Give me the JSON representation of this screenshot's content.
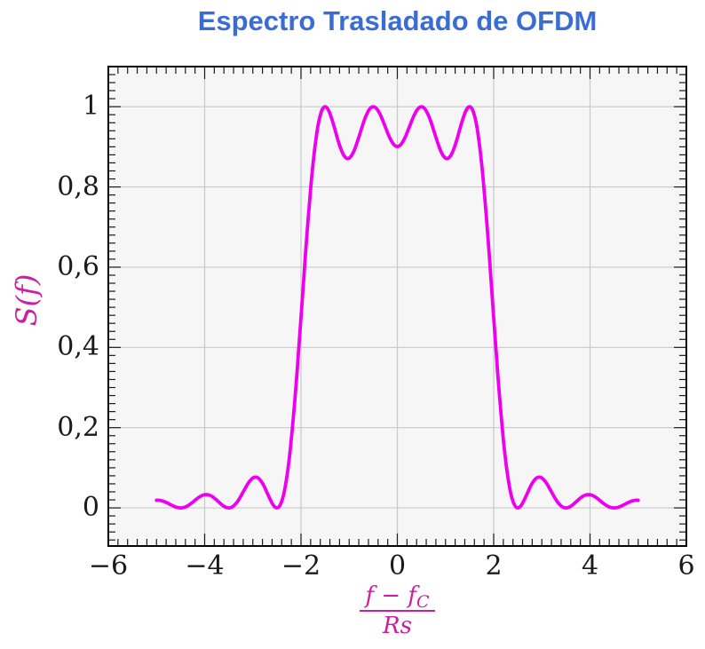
{
  "chart": {
    "title": "Espectro Trasladado de OFDM",
    "ylabel": "S(f)",
    "xlabel_parts": {
      "numerator_base": "f − f",
      "numerator_sub": "C",
      "denominator": "Rs"
    },
    "x_tick_labels": [
      "−6",
      "−4",
      "−2",
      "0",
      "2",
      "4",
      "6"
    ],
    "y_tick_labels": [
      "0",
      "0,2",
      "0,4",
      "0,6",
      "0,8",
      "1"
    ],
    "colors": {
      "title": "#3b6cd6",
      "axis_labels": "#cb1fa0",
      "curve": "#ee00ee",
      "grid": "#c9c9c9",
      "frame": "#000000",
      "ticks": "#1a1a1a",
      "tick_text": "#1a1a1a",
      "plot_background": "#f6f6f7",
      "page_background": "#ffffff"
    }
  },
  "chart_data": {
    "type": "line",
    "title": "Espectro Trasladado de OFDM",
    "xlabel": "(f − f_C) / Rs",
    "ylabel": "S(f)",
    "xlim": [
      -6,
      6
    ],
    "ylim": [
      -0.095,
      1.1
    ],
    "x_major_ticks": [
      -6,
      -4,
      -2,
      0,
      2,
      4,
      6
    ],
    "y_major_ticks": [
      0,
      0.2,
      0.4,
      0.6,
      0.8,
      1
    ],
    "x_minor_step": 0.2,
    "y_minor_step": 0.02,
    "grid": "major",
    "legend": "none",
    "series": [
      {
        "name": "S(f)",
        "color": "#ee00ee",
        "model": {
          "description": "OFDM power spectrum: sum of sinc^2(f - k) over subcarrier offsets k",
          "function": "S(f) = sum_k sinc^2(f - k), sinc(x) = sin(pi x)/(pi x)",
          "subcarriers": [
            -1.5,
            -0.5,
            0.5,
            1.5
          ],
          "x_range": [
            -5,
            5
          ],
          "plot_step": 0.02
        },
        "points": [
          [
            -5.0,
            0.019
          ],
          [
            -4.75,
            0.0107
          ],
          [
            -4.5,
            0.0
          ],
          [
            -4.25,
            0.0141
          ],
          [
            -4.0,
            0.0328
          ],
          [
            -3.75,
            0.0194
          ],
          [
            -3.5,
            0.0
          ],
          [
            -3.25,
            0.0291
          ],
          [
            -3.0,
            0.0745
          ],
          [
            -2.75,
            0.05
          ],
          [
            -2.5,
            0.0
          ],
          [
            -2.25,
            0.1169
          ],
          [
            -2.0,
            0.4748
          ],
          [
            -1.75,
            0.8578
          ],
          [
            -1.5,
            1.0
          ],
          [
            -1.25,
            0.9239
          ],
          [
            -1.0,
            0.8718
          ],
          [
            -0.75,
            0.9431
          ],
          [
            -0.5,
            1.0
          ],
          [
            -0.25,
            0.9496
          ],
          [
            0.0,
            0.9006
          ],
          [
            0.25,
            0.9496
          ],
          [
            0.5,
            1.0
          ],
          [
            0.75,
            0.9431
          ],
          [
            1.0,
            0.8718
          ],
          [
            1.25,
            0.9239
          ],
          [
            1.5,
            1.0
          ],
          [
            1.75,
            0.8578
          ],
          [
            2.0,
            0.4748
          ],
          [
            2.25,
            0.1169
          ],
          [
            2.5,
            0.0
          ],
          [
            2.75,
            0.05
          ],
          [
            3.0,
            0.0745
          ],
          [
            3.25,
            0.0291
          ],
          [
            3.5,
            0.0
          ],
          [
            3.75,
            0.0194
          ],
          [
            4.0,
            0.0328
          ],
          [
            4.25,
            0.0141
          ],
          [
            4.5,
            0.0
          ],
          [
            4.75,
            0.0107
          ],
          [
            5.0,
            0.019
          ]
        ]
      }
    ]
  }
}
